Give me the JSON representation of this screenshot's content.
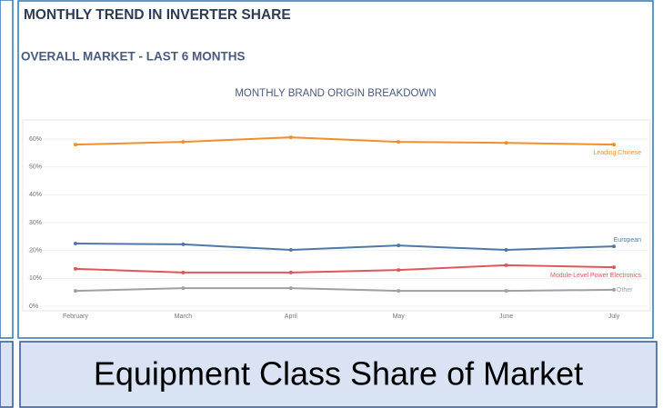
{
  "header": {
    "title": "MONTHLY TREND IN INVERTER SHARE",
    "subtitle": "OVERALL MARKET - LAST 6 MONTHS"
  },
  "caption": "Equipment Class Share of Market",
  "chart_data": {
    "type": "line",
    "title": "MONTHLY BRAND ORIGIN BREAKDOWN",
    "categories": [
      "February",
      "March",
      "April",
      "May",
      "June",
      "July"
    ],
    "series": [
      {
        "name": "Leading Chinese",
        "color": "#f28e2b",
        "values": [
          58.0,
          59.0,
          60.6,
          59.0,
          58.6,
          58.0
        ]
      },
      {
        "name": "European",
        "color": "#4e79a7",
        "values": [
          22.5,
          22.2,
          20.2,
          21.8,
          20.2,
          21.5
        ]
      },
      {
        "name": "Module-Level Power Electronics",
        "color": "#e15759",
        "values": [
          13.4,
          12.1,
          12.1,
          13.0,
          14.7,
          14.0
        ]
      },
      {
        "name": "Other",
        "color": "#a0a0a0",
        "values": [
          5.5,
          6.5,
          6.5,
          5.5,
          5.5,
          5.9
        ]
      }
    ],
    "ylim": [
      0,
      60
    ],
    "yticks": [
      {
        "value": 0,
        "label": "0%"
      },
      {
        "value": 10,
        "label": "10%"
      },
      {
        "value": 20,
        "label": "20%"
      },
      {
        "value": 30,
        "label": "30%"
      },
      {
        "value": 40,
        "label": "40%"
      },
      {
        "value": 50,
        "label": "50%"
      },
      {
        "value": 60,
        "label": "60%"
      }
    ],
    "grid": true
  }
}
